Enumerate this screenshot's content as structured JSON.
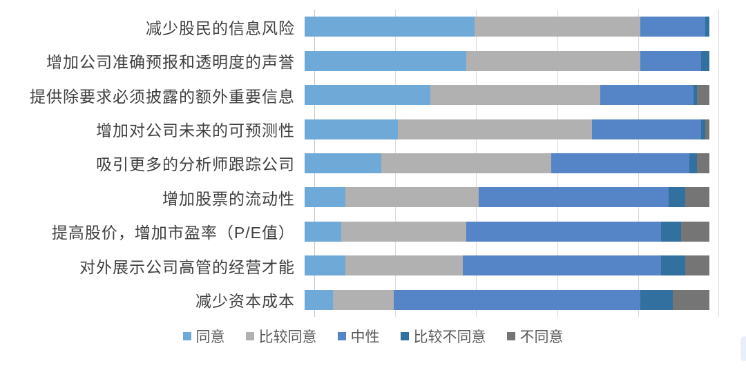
{
  "chart_data": {
    "type": "bar",
    "stacked": true,
    "orientation": "horizontal",
    "unit": "percent",
    "xlim": [
      0,
      100
    ],
    "gridlines_percent": [
      0,
      20,
      40,
      60,
      80,
      100
    ],
    "grid": "on",
    "legend_position": "bottom-center",
    "title": "",
    "xlabel": "",
    "ylabel": "",
    "categories": [
      "减少股民的信息风险",
      "增加公司准确预报和透明度的声誉",
      "提供除要求必须披露的额外重要信息",
      "增加对公司未来的可预测性",
      "吸引更多的分析师跟踪公司",
      "增加股票的流动性",
      "提高股价，增加市盈率（P/E值）",
      "对外展示公司高管的经营才能",
      "减少资本成本"
    ],
    "series": [
      {
        "key": "agree",
        "name": "同意",
        "color": "#6EA9D8",
        "values": [
          42,
          40,
          31,
          23,
          19,
          10,
          9,
          10,
          7
        ]
      },
      {
        "key": "somewhat-agree",
        "name": "比较同意",
        "color": "#B1B1B1",
        "values": [
          41,
          43,
          42,
          48,
          42,
          33,
          31,
          29,
          15
        ]
      },
      {
        "key": "neutral",
        "name": "中性",
        "color": "#5585C6",
        "values": [
          16,
          15,
          23,
          27,
          34,
          47,
          48,
          49,
          61
        ]
      },
      {
        "key": "somewhat-disagree",
        "name": "比较不同意",
        "color": "#31709F",
        "values": [
          1,
          2,
          1,
          1,
          2,
          4,
          5,
          6,
          8
        ]
      },
      {
        "key": "disagree",
        "name": "不同意",
        "color": "#757575",
        "values": [
          0,
          0,
          3,
          1,
          3,
          6,
          7,
          6,
          9
        ]
      }
    ]
  },
  "colors": {
    "background": "#FFFFFF",
    "gridline": "#D9D9D9",
    "axis_line": "#C6C6C6",
    "category_label_text": "#3F3F3F",
    "legend_text": "#595959",
    "scroll_thumb": "#E9EFF6"
  }
}
